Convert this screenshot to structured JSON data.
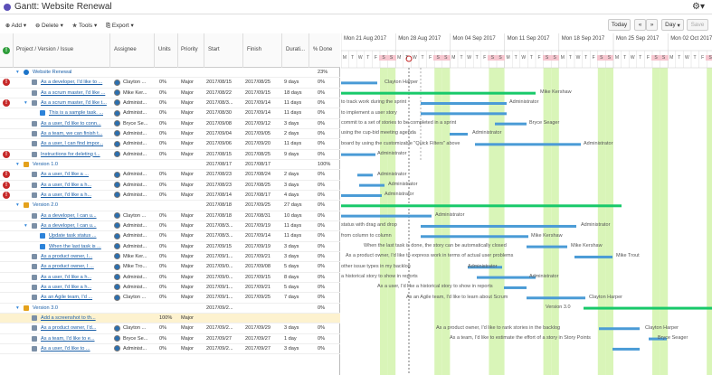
{
  "app": {
    "title": "Gantt: Website Renewal"
  },
  "toolbar": {
    "add": "Add",
    "delete": "Delete",
    "tools": "Tools",
    "export": "Export",
    "today": "Today",
    "prev": "«",
    "next": "»",
    "day": "Day",
    "save": "Save"
  },
  "columns": {
    "issue": "Project / Version / Issue",
    "assignee": "Assignee",
    "units": "Units",
    "priority": "Priority",
    "start": "Start",
    "finish": "Finish",
    "duration": "Durati...",
    "done": "% Done"
  },
  "weeks": [
    "Mon 21 Aug 2017",
    "Mon 28 Aug 2017",
    "Mon 04 Sep 2017",
    "Mon 11 Sep 2017",
    "Mon 18 Sep 2017",
    "Mon 25 Sep 2017",
    "Mon 02 Oct 2017"
  ],
  "day_letters": [
    "M",
    "T",
    "W",
    "T",
    "F",
    "S",
    "S"
  ],
  "rows": [
    {
      "name": "Website Renewal",
      "assignee": "",
      "units": "",
      "priority": "",
      "start": "",
      "finish": "",
      "duration": "",
      "done": "23%",
      "level": 1,
      "kind": "project",
      "err": false,
      "sel": false
    },
    {
      "name": "As a developer, I'd like to ...",
      "assignee": "Clayton ...",
      "units": "0%",
      "priority": "Major",
      "start": "2017/08/15",
      "finish": "2017/08/25",
      "duration": "9 days",
      "done": "0%",
      "level": 2,
      "kind": "story",
      "err": true,
      "sel": false
    },
    {
      "name": "As a scrum master, I'd like ...",
      "assignee": "Mike Ker...",
      "units": "0%",
      "priority": "Major",
      "start": "2017/08/22",
      "finish": "2017/09/15",
      "duration": "18 days",
      "done": "0%",
      "level": 2,
      "kind": "story",
      "err": false,
      "sel": false
    },
    {
      "name": "As a scrum master, I'd like t...",
      "assignee": "Administ...",
      "units": "0%",
      "priority": "Major",
      "start": "2017/08/3...",
      "finish": "2017/09/14",
      "duration": "11 days",
      "done": "0%",
      "level": 2,
      "kind": "story",
      "err": true,
      "sel": false
    },
    {
      "name": "This is a sample task. ...",
      "assignee": "Administ...",
      "units": "0%",
      "priority": "Major",
      "start": "2017/08/30",
      "finish": "2017/09/14",
      "duration": "11 days",
      "done": "0%",
      "level": 3,
      "kind": "task",
      "err": false,
      "sel": false
    },
    {
      "name": "As a user, I'd like to conn...",
      "assignee": "Bryce Se...",
      "units": "0%",
      "priority": "Major",
      "start": "2017/09/08",
      "finish": "2017/09/12",
      "duration": "3 days",
      "done": "0%",
      "level": 2,
      "kind": "story",
      "err": false,
      "sel": false
    },
    {
      "name": "As a team, we can finish t...",
      "assignee": "Administ...",
      "units": "0%",
      "priority": "Major",
      "start": "2017/09/04",
      "finish": "2017/09/05",
      "duration": "2 days",
      "done": "0%",
      "level": 2,
      "kind": "story",
      "err": false,
      "sel": false
    },
    {
      "name": "As a user, I can find impor...",
      "assignee": "Administ...",
      "units": "0%",
      "priority": "Major",
      "start": "2017/09/06",
      "finish": "2017/09/20",
      "duration": "11 days",
      "done": "0%",
      "level": 2,
      "kind": "story",
      "err": false,
      "sel": false
    },
    {
      "name": "Instructions for deleting t...",
      "assignee": "Administ...",
      "units": "0%",
      "priority": "Major",
      "start": "2017/08/15",
      "finish": "2017/08/25",
      "duration": "9 days",
      "done": "0%",
      "level": 2,
      "kind": "story",
      "err": true,
      "sel": false
    },
    {
      "name": "Version 1.0",
      "assignee": "",
      "units": "",
      "priority": "",
      "start": "2017/08/17",
      "finish": "2017/08/17",
      "duration": "",
      "done": "100%",
      "level": 1,
      "kind": "version",
      "err": false,
      "sel": false
    },
    {
      "name": "As a user, I'd like a ...",
      "assignee": "Administ...",
      "units": "0%",
      "priority": "Major",
      "start": "2017/08/23",
      "finish": "2017/08/24",
      "duration": "2 days",
      "done": "0%",
      "level": 2,
      "kind": "story",
      "err": true,
      "sel": false
    },
    {
      "name": "As a user, I'd like a h...",
      "assignee": "Administ...",
      "units": "0%",
      "priority": "Major",
      "start": "2017/08/23",
      "finish": "2017/08/25",
      "duration": "3 days",
      "done": "0%",
      "level": 2,
      "kind": "story",
      "err": true,
      "sel": false
    },
    {
      "name": "As a user, I'd like a h...",
      "assignee": "Administ...",
      "units": "0%",
      "priority": "Major",
      "start": "2017/08/14",
      "finish": "2017/08/17",
      "duration": "4 days",
      "done": "0%",
      "level": 2,
      "kind": "story",
      "err": true,
      "sel": false
    },
    {
      "name": "Version 2.0",
      "assignee": "",
      "units": "",
      "priority": "",
      "start": "2017/08/18",
      "finish": "2017/09/25",
      "duration": "27 days",
      "done": "0%",
      "level": 1,
      "kind": "version",
      "err": false,
      "sel": false
    },
    {
      "name": "As a developer, I can u...",
      "assignee": "Clayton ...",
      "units": "0%",
      "priority": "Major",
      "start": "2017/08/18",
      "finish": "2017/08/31",
      "duration": "10 days",
      "done": "0%",
      "level": 2,
      "kind": "story",
      "err": false,
      "sel": false
    },
    {
      "name": "As a developer, I can u...",
      "assignee": "Administ...",
      "units": "0%",
      "priority": "Major",
      "start": "2017/08/3...",
      "finish": "2017/09/19",
      "duration": "11 days",
      "done": "0%",
      "level": 2,
      "kind": "story",
      "err": false,
      "sel": false
    },
    {
      "name": "Update task status ...",
      "assignee": "Administ...",
      "units": "0%",
      "priority": "Major",
      "start": "2017/08/3...",
      "finish": "2017/09/14",
      "duration": "11 days",
      "done": "0%",
      "level": 3,
      "kind": "task",
      "err": false,
      "sel": false
    },
    {
      "name": "When the last task is ...",
      "assignee": "Administ...",
      "units": "0%",
      "priority": "Major",
      "start": "2017/09/15",
      "finish": "2017/09/19",
      "duration": "3 days",
      "done": "0%",
      "level": 3,
      "kind": "task",
      "err": false,
      "sel": false
    },
    {
      "name": "As a product owner, I...",
      "assignee": "Mike Ker...",
      "units": "0%",
      "priority": "Major",
      "start": "2017/09/1...",
      "finish": "2017/09/21",
      "duration": "3 days",
      "done": "0%",
      "level": 2,
      "kind": "story",
      "err": false,
      "sel": false
    },
    {
      "name": "As a product owner, I ...",
      "assignee": "Mike Tro...",
      "units": "0%",
      "priority": "Major",
      "start": "2017/09/0...",
      "finish": "2017/09/08",
      "duration": "5 days",
      "done": "0%",
      "level": 2,
      "kind": "story",
      "err": false,
      "sel": false
    },
    {
      "name": "As a user, I'd like a h...",
      "assignee": "Administ...",
      "units": "0%",
      "priority": "Major",
      "start": "2017/09/0...",
      "finish": "2017/09/15",
      "duration": "8 days",
      "done": "0%",
      "level": 2,
      "kind": "story",
      "err": false,
      "sel": false
    },
    {
      "name": "As a user, I'd like a h...",
      "assignee": "Administ...",
      "units": "0%",
      "priority": "Major",
      "start": "2017/09/1...",
      "finish": "2017/09/21",
      "duration": "5 days",
      "done": "0%",
      "level": 2,
      "kind": "story",
      "err": false,
      "sel": false
    },
    {
      "name": "As an Agile team, I'd ...",
      "assignee": "Clayton ...",
      "units": "0%",
      "priority": "Major",
      "start": "2017/09/1...",
      "finish": "2017/09/25",
      "duration": "7 days",
      "done": "0%",
      "level": 2,
      "kind": "story",
      "err": false,
      "sel": false
    },
    {
      "name": "Version 3.0",
      "assignee": "",
      "units": "",
      "priority": "",
      "start": "2017/09/2...",
      "finish": "",
      "duration": "",
      "done": "0%",
      "level": 1,
      "kind": "version",
      "err": false,
      "sel": false
    },
    {
      "name": "Add a screenshot to th...",
      "assignee": "",
      "units": "100%",
      "priority": "Major",
      "start": "",
      "finish": "",
      "duration": "",
      "done": "",
      "level": 2,
      "kind": "story",
      "err": false,
      "sel": true
    },
    {
      "name": "As a product owner, I'd...",
      "assignee": "Clayton ...",
      "units": "0%",
      "priority": "Major",
      "start": "2017/09/2...",
      "finish": "2017/09/29",
      "duration": "3 days",
      "done": "0%",
      "level": 2,
      "kind": "story",
      "err": false,
      "sel": false
    },
    {
      "name": "As a team, I'd like to e...",
      "assignee": "Bryce Se...",
      "units": "0%",
      "priority": "Major",
      "start": "2017/09/27",
      "finish": "2017/09/27",
      "duration": "1 day",
      "done": "0%",
      "level": 2,
      "kind": "story",
      "err": false,
      "sel": false
    },
    {
      "name": "As a user, I'd like to ...",
      "assignee": "Administ...",
      "units": "0%",
      "priority": "Major",
      "start": "2017/09/2...",
      "finish": "2017/09/27",
      "duration": "3 days",
      "done": "0%",
      "level": 2,
      "kind": "story",
      "err": false,
      "sel": false
    }
  ],
  "chart_labels": [
    "Clayton Harper",
    "Mike Kershaw",
    "Administrator",
    "Bryce Seager",
    "Administrator",
    "Administrator",
    "Administrator",
    "Administrator",
    "Administrator",
    "Administrator",
    "Administrator",
    "Administrator",
    "Mike Kershaw",
    "Mike Kershaw",
    "Mike Trout",
    "Administrator",
    "Administrator",
    "Clayton Harper",
    "Version 3.0",
    "Clayton Harper",
    "Bryce Seager"
  ],
  "chart_texts": [
    "to track work during the sprint",
    "to implement a user story",
    "commit to a set of stories to be completed in a sprint",
    "using the cup-bid meeting agenda",
    "board by using the customizable \"Quick Filters\" above",
    "status with drag and drop",
    "from column to column",
    "When the last task is done, the story can be automatically closed",
    "As a product owner, I'd like to express work in terms of actual user problems",
    "other issue types in my backlog",
    "a historical story to show in reports",
    "As a user, I'd like a historical story to show in reports",
    "As an Agile team, I'd like to learn about Scrum",
    "As a product owner, I'd like to rank stories in the backlog",
    "As a team, I'd like to estimate the effort of a story in Story Points"
  ]
}
